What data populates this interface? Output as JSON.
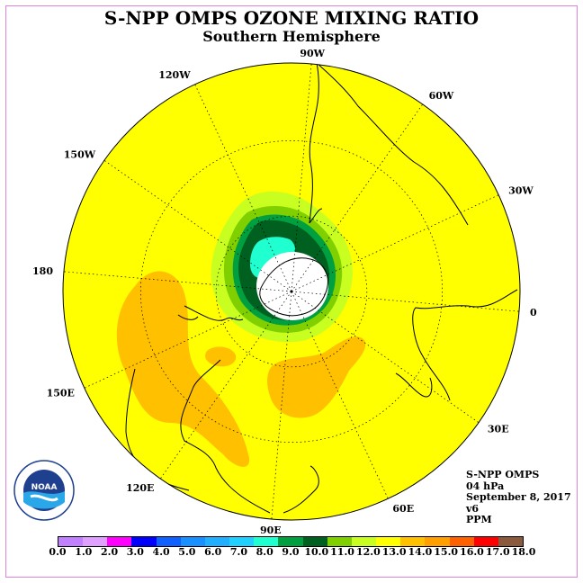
{
  "header": {
    "title": "S-NPP OMPS OZONE MIXING RATIO",
    "subtitle": "Southern Hemisphere"
  },
  "map": {
    "projection": "polar stereographic, south pole",
    "background_color": "#ffff00",
    "longitude_labels": [
      "90W",
      "60W",
      "30W",
      "0",
      "30E",
      "60E",
      "90E",
      "120E",
      "150E",
      "180",
      "150W",
      "120W"
    ],
    "logo_text": "NOAA"
  },
  "info": {
    "instrument": "S-NPP OMPS",
    "level": "04 hPa",
    "date": "September 8, 2017",
    "version": "v6",
    "units": "PPM"
  },
  "colorbar": {
    "ticks": [
      "0.0",
      "1.0",
      "2.0",
      "3.0",
      "4.0",
      "5.0",
      "6.0",
      "7.0",
      "8.0",
      "9.0",
      "10.0",
      "11.0",
      "12.0",
      "13.0",
      "14.0",
      "15.0",
      "16.0",
      "17.0",
      "18.0"
    ],
    "colors": [
      "#c080ff",
      "#e0a0ff",
      "#ff00ff",
      "#0000ff",
      "#1060ff",
      "#1890ff",
      "#20b0ff",
      "#20d0ff",
      "#20ffd0",
      "#00a040",
      "#006020",
      "#80d000",
      "#c8ff20",
      "#ffff00",
      "#ffc000",
      "#ffa000",
      "#ff6000",
      "#ff0000",
      "#8b5a3c"
    ]
  }
}
